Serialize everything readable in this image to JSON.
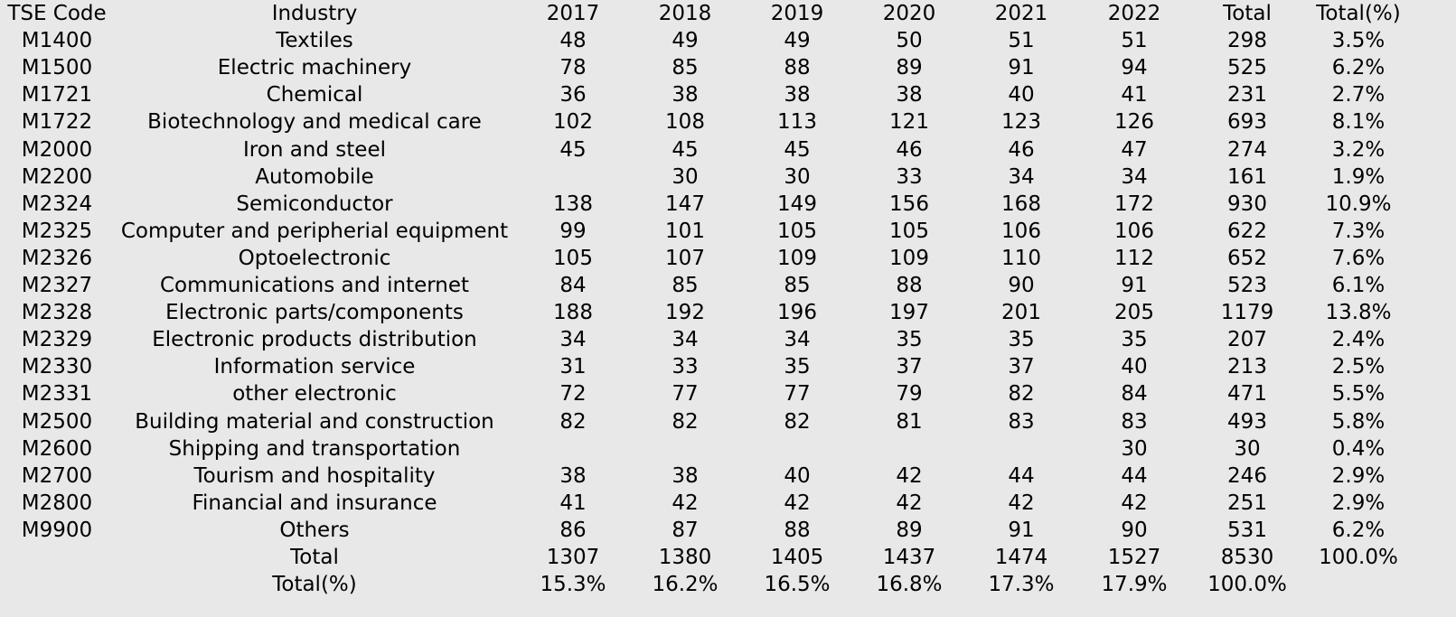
{
  "table": {
    "headers": [
      "TSE Code",
      "Industry",
      "2017",
      "2018",
      "2019",
      "2020",
      "2021",
      "2022",
      "Total",
      "Total(%)"
    ],
    "rows": [
      [
        "M1400",
        "Textiles",
        "48",
        "49",
        "49",
        "50",
        "51",
        "51",
        "298",
        "3.5%"
      ],
      [
        "M1500",
        "Electric machinery",
        "78",
        "85",
        "88",
        "89",
        "91",
        "94",
        "525",
        "6.2%"
      ],
      [
        "M1721",
        "Chemical",
        "36",
        "38",
        "38",
        "38",
        "40",
        "41",
        "231",
        "2.7%"
      ],
      [
        "M1722",
        "Biotechnology and medical care",
        "102",
        "108",
        "113",
        "121",
        "123",
        "126",
        "693",
        "8.1%"
      ],
      [
        "M2000",
        "Iron and steel",
        "45",
        "45",
        "45",
        "46",
        "46",
        "47",
        "274",
        "3.2%"
      ],
      [
        "M2200",
        "Automobile",
        "",
        "30",
        "30",
        "33",
        "34",
        "34",
        "161",
        "1.9%"
      ],
      [
        "M2324",
        "Semiconductor",
        "138",
        "147",
        "149",
        "156",
        "168",
        "172",
        "930",
        "10.9%"
      ],
      [
        "M2325",
        "Computer and peripherial equipment",
        "99",
        "101",
        "105",
        "105",
        "106",
        "106",
        "622",
        "7.3%"
      ],
      [
        "M2326",
        "Optoelectronic",
        "105",
        "107",
        "109",
        "109",
        "110",
        "112",
        "652",
        "7.6%"
      ],
      [
        "M2327",
        "Communications and internet",
        "84",
        "85",
        "85",
        "88",
        "90",
        "91",
        "523",
        "6.1%"
      ],
      [
        "M2328",
        "Electronic parts/components",
        "188",
        "192",
        "196",
        "197",
        "201",
        "205",
        "1179",
        "13.8%"
      ],
      [
        "M2329",
        "Electronic products distribution",
        "34",
        "34",
        "34",
        "35",
        "35",
        "35",
        "207",
        "2.4%"
      ],
      [
        "M2330",
        "Information service",
        "31",
        "33",
        "35",
        "37",
        "37",
        "40",
        "213",
        "2.5%"
      ],
      [
        "M2331",
        "other electronic",
        "72",
        "77",
        "77",
        "79",
        "82",
        "84",
        "471",
        "5.5%"
      ],
      [
        "M2500",
        "Building material and construction",
        "82",
        "82",
        "82",
        "81",
        "83",
        "83",
        "493",
        "5.8%"
      ],
      [
        "M2600",
        "Shipping and transportation",
        "",
        "",
        "",
        "",
        "",
        "30",
        "30",
        "0.4%"
      ],
      [
        "M2700",
        "Tourism and hospitality",
        "38",
        "38",
        "40",
        "42",
        "44",
        "44",
        "246",
        "2.9%"
      ],
      [
        "M2800",
        "Financial and insurance",
        "41",
        "42",
        "42",
        "42",
        "42",
        "42",
        "251",
        "2.9%"
      ],
      [
        "M9900",
        "Others",
        "86",
        "87",
        "88",
        "89",
        "91",
        "90",
        "531",
        "6.2%"
      ],
      [
        "",
        "Total",
        "1307",
        "1380",
        "1405",
        "1437",
        "1474",
        "1527",
        "8530",
        "100.0%"
      ],
      [
        "",
        "Total(%)",
        "15.3%",
        "16.2%",
        "16.5%",
        "16.8%",
        "17.3%",
        "17.9%",
        "100.0%",
        ""
      ]
    ]
  }
}
